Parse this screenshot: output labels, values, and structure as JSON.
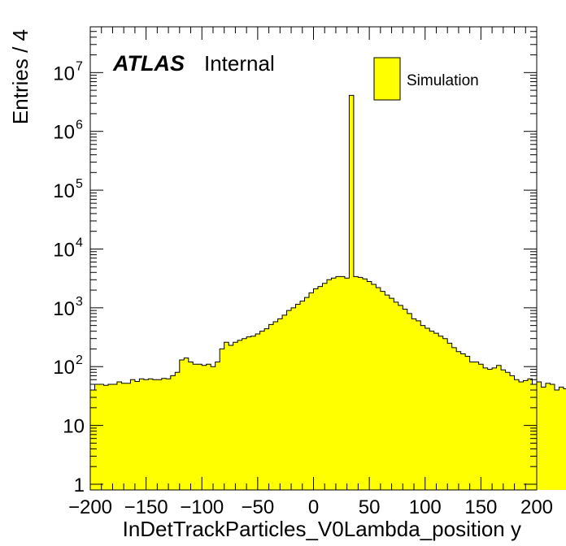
{
  "chart_data": {
    "type": "bar",
    "subtype": "histogram",
    "title": "",
    "xlabel": "InDetTrackParticles_V0Lambda_position y",
    "ylabel": "Entries / 4",
    "xlim": [
      -200,
      200
    ],
    "ylim": [
      0.8,
      60000000
    ],
    "yscale": "log",
    "bin_width": 4,
    "bin_edges_start": -200,
    "x_ticks": [
      "−200",
      "−150",
      "−100",
      "−50",
      "0",
      "50",
      "100",
      "150",
      "200"
    ],
    "x_tick_values": [
      -200,
      -150,
      -100,
      -50,
      0,
      50,
      100,
      150,
      200
    ],
    "y_ticks": [
      {
        "value": 1,
        "base": "1",
        "exp": ""
      },
      {
        "value": 10,
        "base": "10",
        "exp": ""
      },
      {
        "value": 100,
        "base": "10",
        "exp": "2"
      },
      {
        "value": 1000,
        "base": "10",
        "exp": "3"
      },
      {
        "value": 10000,
        "base": "10",
        "exp": "4"
      },
      {
        "value": 100000,
        "base": "10",
        "exp": "5"
      },
      {
        "value": 1000000,
        "base": "10",
        "exp": "6"
      },
      {
        "value": 10000000,
        "base": "10",
        "exp": "7"
      }
    ],
    "series": [
      {
        "name": "Simulation",
        "color": "#ffff00",
        "edge_color": "#000000",
        "values": [
          40,
          50,
          50,
          48,
          50,
          50,
          55,
          52,
          52,
          60,
          56,
          62,
          60,
          62,
          60,
          60,
          63,
          62,
          70,
          80,
          130,
          140,
          120,
          110,
          110,
          105,
          110,
          100,
          120,
          200,
          260,
          230,
          260,
          280,
          300,
          320,
          330,
          360,
          400,
          440,
          520,
          580,
          650,
          750,
          900,
          1000,
          1150,
          1300,
          1500,
          1800,
          2100,
          2300,
          2600,
          3000,
          3200,
          3400,
          3400,
          3200,
          4100000,
          3400,
          3300,
          3100,
          2800,
          2500,
          2200,
          1900,
          1650,
          1450,
          1250,
          1100,
          950,
          800,
          650,
          600,
          500,
          450,
          400,
          370,
          330,
          300,
          250,
          210,
          180,
          165,
          150,
          120,
          120,
          110,
          95,
          90,
          95,
          105,
          88,
          80,
          70,
          60,
          55,
          58,
          62,
          50,
          55,
          45,
          52,
          50,
          40,
          45,
          42,
          38,
          45,
          38,
          30,
          42
        ]
      }
    ],
    "legend": {
      "position": "top-right",
      "entries": [
        "Simulation"
      ]
    },
    "annotations": {
      "experiment": "ATLAS",
      "status": "Internal"
    },
    "grid": false
  }
}
